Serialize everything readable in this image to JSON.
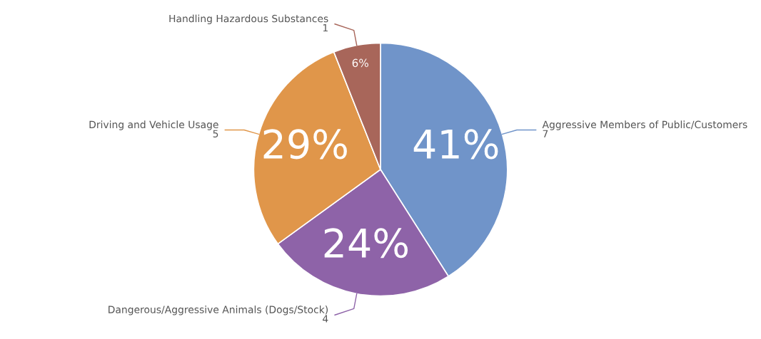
{
  "chart_data": {
    "type": "pie",
    "categories": [
      "Aggressive Members of Public/Customers\n7",
      "Dangerous/Aggressive Animals (Dogs/Stock)\n4",
      "Driving and Vehicle Usage\n5",
      "Handling Hazardous Substances\n1"
    ],
    "values": [
      41,
      24,
      29,
      6
    ],
    "colors": [
      "#7094c9",
      "#8e63a8",
      "#e0964a",
      "#a8665a"
    ],
    "value_labels": [
      "41%",
      "24%",
      "29%",
      "6%"
    ]
  }
}
